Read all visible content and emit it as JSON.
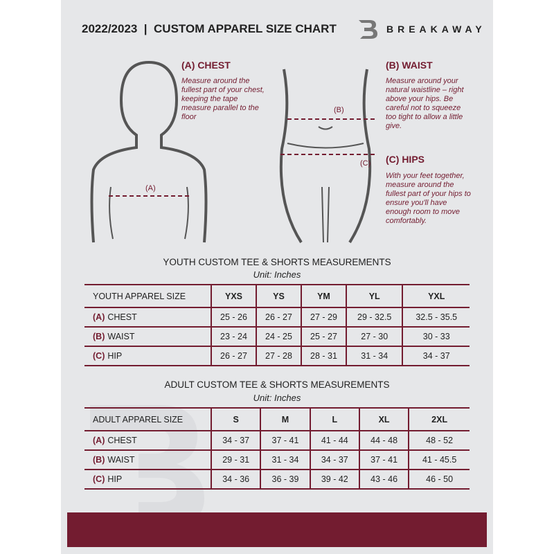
{
  "header": {
    "title": "2022/2023  |  CUSTOM APPAREL SIZE CHART",
    "brand": "BREAKAWAY",
    "logo": "B"
  },
  "measure": {
    "chest": {
      "heading": "(A) CHEST",
      "desc": "Measure around the fullest part of your chest, keeping the tape measure parallel to the floor",
      "marker": "(A)"
    },
    "waist": {
      "heading": "(B) WAIST",
      "desc": "Measure around your natural waistline – right above your hips. Be careful not to squeeze too tight to allow a little give.",
      "marker": "(B)"
    },
    "hips": {
      "heading": "(C) HIPS",
      "desc": "With your feet together, measure around the fullest part of your hips to ensure you'll have enough room to move comfortably.",
      "marker": "(C)"
    }
  },
  "youth": {
    "title": "YOUTH CUSTOM TEE & SHORTS MEASUREMENTS",
    "unit": "Unit: Inches",
    "header": [
      "YOUTH APPAREL SIZE",
      "YXS",
      "YS",
      "YM",
      "YL",
      "YXL"
    ],
    "rows": [
      {
        "label": "(A)",
        "name": "CHEST",
        "values": [
          "25 - 26",
          "26 - 27",
          "27 - 29",
          "29 - 32.5",
          "32.5 - 35.5"
        ]
      },
      {
        "label": "(B)",
        "name": "WAIST",
        "values": [
          "23 - 24",
          "24 - 25",
          "25 - 27",
          "27 - 30",
          "30 - 33"
        ]
      },
      {
        "label": "(C)",
        "name": "HIP",
        "values": [
          "26 - 27",
          "27 - 28",
          "28 - 31",
          "31 - 34",
          "34 - 37"
        ]
      }
    ]
  },
  "adult": {
    "title": "ADULT CUSTOM TEE & SHORTS MEASUREMENTS",
    "unit": "Unit: Inches",
    "header": [
      "ADULT APPAREL SIZE",
      "S",
      "M",
      "L",
      "XL",
      "2XL"
    ],
    "rows": [
      {
        "label": "(A)",
        "name": "CHEST",
        "values": [
          "34 - 37",
          "37 - 41",
          "41 - 44",
          "44 - 48",
          "48 - 52"
        ]
      },
      {
        "label": "(B)",
        "name": "WAIST",
        "values": [
          "29 - 31",
          "31 - 34",
          "34 - 37",
          "37 - 41",
          "41 - 45.5"
        ]
      },
      {
        "label": "(C)",
        "name": "HIP",
        "values": [
          "34 - 36",
          "36 - 39",
          "39 - 42",
          "43 - 46",
          "46 - 50"
        ]
      }
    ]
  },
  "colors": {
    "accent": "#731c30",
    "background": "#e6e7e9"
  }
}
